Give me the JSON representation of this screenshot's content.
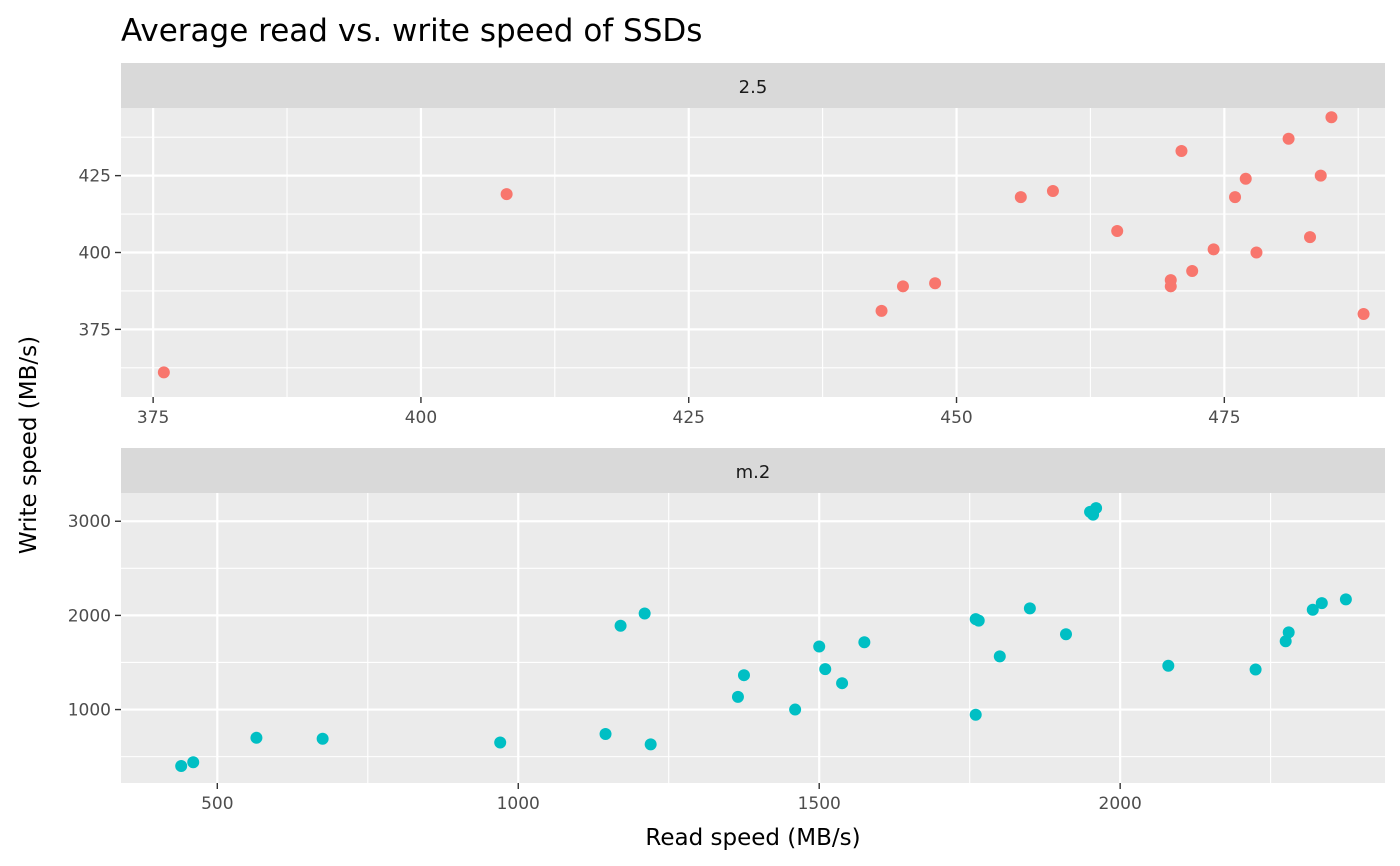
{
  "chart_data": {
    "type": "scatter",
    "title": "Average read vs. write speed of SSDs",
    "xlabel": "Read speed (MB/s)",
    "ylabel": "Write speed (MB/s)",
    "grid": true,
    "legend": "none",
    "facet_scales": "free",
    "panels": [
      {
        "label": "2.5",
        "color": "#F8766D",
        "xlim": [
          372,
          490
        ],
        "ylim": [
          353,
          447
        ],
        "xticks": [
          375,
          400,
          425,
          450,
          475
        ],
        "yticks": [
          375,
          400,
          425
        ],
        "points": [
          {
            "x": 376,
            "y": 361
          },
          {
            "x": 408,
            "y": 419
          },
          {
            "x": 443,
            "y": 381
          },
          {
            "x": 445,
            "y": 389
          },
          {
            "x": 448,
            "y": 390
          },
          {
            "x": 456,
            "y": 418
          },
          {
            "x": 459,
            "y": 420
          },
          {
            "x": 465,
            "y": 407
          },
          {
            "x": 470,
            "y": 391
          },
          {
            "x": 470,
            "y": 389
          },
          {
            "x": 471,
            "y": 433
          },
          {
            "x": 472,
            "y": 394
          },
          {
            "x": 474,
            "y": 401
          },
          {
            "x": 476,
            "y": 418
          },
          {
            "x": 477,
            "y": 424
          },
          {
            "x": 478,
            "y": 400
          },
          {
            "x": 481,
            "y": 437
          },
          {
            "x": 483,
            "y": 405
          },
          {
            "x": 484,
            "y": 425
          },
          {
            "x": 485,
            "y": 444
          },
          {
            "x": 488,
            "y": 380
          }
        ]
      },
      {
        "label": "m.2",
        "color": "#00BFC4",
        "xlim": [
          340,
          2440
        ],
        "ylim": [
          220,
          3300
        ],
        "xticks": [
          500,
          1000,
          1500,
          2000
        ],
        "yticks": [
          1000,
          2000,
          3000
        ],
        "points": [
          {
            "x": 440,
            "y": 400
          },
          {
            "x": 460,
            "y": 440
          },
          {
            "x": 565,
            "y": 700
          },
          {
            "x": 675,
            "y": 690
          },
          {
            "x": 970,
            "y": 650
          },
          {
            "x": 1145,
            "y": 740
          },
          {
            "x": 1170,
            "y": 1890
          },
          {
            "x": 1210,
            "y": 2020
          },
          {
            "x": 1220,
            "y": 630
          },
          {
            "x": 1365,
            "y": 1135
          },
          {
            "x": 1375,
            "y": 1365
          },
          {
            "x": 1460,
            "y": 1000
          },
          {
            "x": 1500,
            "y": 1670
          },
          {
            "x": 1510,
            "y": 1430
          },
          {
            "x": 1538,
            "y": 1280
          },
          {
            "x": 1575,
            "y": 1715
          },
          {
            "x": 1760,
            "y": 945
          },
          {
            "x": 1760,
            "y": 1960
          },
          {
            "x": 1765,
            "y": 1945
          },
          {
            "x": 1800,
            "y": 1565
          },
          {
            "x": 1850,
            "y": 2075
          },
          {
            "x": 1910,
            "y": 1800
          },
          {
            "x": 1950,
            "y": 3100
          },
          {
            "x": 1955,
            "y": 3070
          },
          {
            "x": 1960,
            "y": 3140
          },
          {
            "x": 2080,
            "y": 1465
          },
          {
            "x": 2225,
            "y": 1425
          },
          {
            "x": 2275,
            "y": 1725
          },
          {
            "x": 2280,
            "y": 1820
          },
          {
            "x": 2320,
            "y": 2060
          },
          {
            "x": 2335,
            "y": 2130
          },
          {
            "x": 2375,
            "y": 2170
          }
        ]
      }
    ]
  }
}
